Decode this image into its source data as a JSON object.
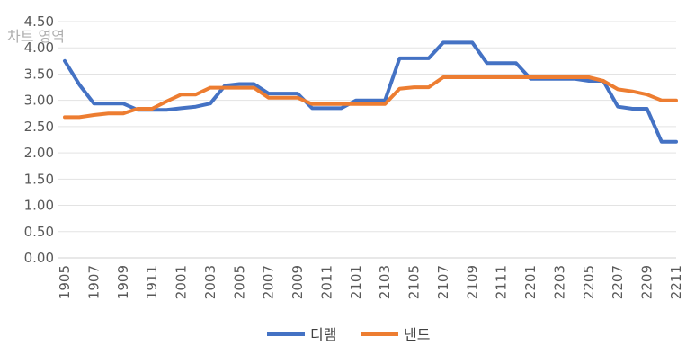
{
  "chart_data": {
    "type": "line",
    "title": "",
    "area_label": "차트 영역",
    "xlabel": "",
    "ylabel": "",
    "ylim": [
      0,
      4.5
    ],
    "yticks": [
      "0.00",
      "0.50",
      "1.00",
      "1.50",
      "2.00",
      "2.50",
      "3.00",
      "3.50",
      "4.00",
      "4.50"
    ],
    "categories": [
      "1905",
      "1906",
      "1907",
      "1908",
      "1909",
      "1910",
      "1911",
      "1912",
      "2001",
      "2002",
      "2003",
      "2004",
      "2005",
      "2006",
      "2007",
      "2008",
      "2009",
      "2010",
      "2011",
      "2012",
      "2101",
      "2102",
      "2103",
      "2104",
      "2105",
      "2106",
      "2107",
      "2108",
      "2109",
      "2110",
      "2111",
      "2112",
      "2201",
      "2202",
      "2203",
      "2204",
      "2205",
      "2206",
      "2207",
      "2208",
      "2209",
      "2210",
      "2211"
    ],
    "shown_tick_labels": [
      "1905",
      "1907",
      "1909",
      "1911",
      "2001",
      "2003",
      "2005",
      "2007",
      "2009",
      "2011",
      "2101",
      "2103",
      "2105",
      "2107",
      "2109",
      "2111",
      "2201",
      "2203",
      "2205",
      "2207",
      "2209",
      "2211"
    ],
    "series": [
      {
        "name": "디램",
        "color": "#4472C4",
        "values": [
          3.75,
          3.3,
          2.94,
          2.94,
          2.94,
          2.82,
          2.82,
          2.82,
          2.85,
          2.88,
          2.94,
          3.28,
          3.31,
          3.31,
          3.13,
          3.13,
          3.13,
          2.85,
          2.85,
          2.85,
          3.0,
          3.0,
          3.0,
          3.8,
          3.8,
          3.8,
          4.1,
          4.1,
          4.1,
          3.71,
          3.71,
          3.71,
          3.41,
          3.41,
          3.41,
          3.41,
          3.37,
          3.37,
          2.88,
          2.84,
          2.84,
          2.21,
          2.21
        ]
      },
      {
        "name": "낸드",
        "color": "#ED7D31",
        "values": [
          2.68,
          2.68,
          2.72,
          2.75,
          2.75,
          2.84,
          2.84,
          2.98,
          3.11,
          3.11,
          3.24,
          3.24,
          3.24,
          3.24,
          3.05,
          3.05,
          3.05,
          2.93,
          2.93,
          2.93,
          2.93,
          2.93,
          2.93,
          3.22,
          3.25,
          3.25,
          3.44,
          3.44,
          3.44,
          3.44,
          3.44,
          3.44,
          3.44,
          3.44,
          3.44,
          3.44,
          3.44,
          3.37,
          3.21,
          3.17,
          3.11,
          3.0,
          3.0
        ]
      }
    ],
    "legend_position": "bottom",
    "grid": true
  }
}
